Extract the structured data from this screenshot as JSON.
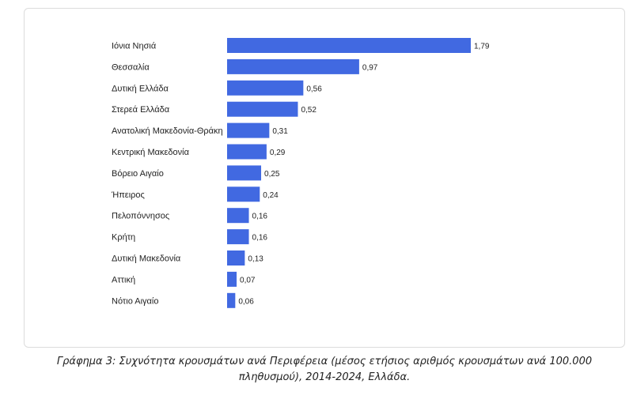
{
  "chart_data": {
    "type": "bar",
    "orientation": "horizontal",
    "categories": [
      "Ιόνια Νησιά",
      "Θεσσαλία",
      "Δυτική Ελλάδα",
      "Στερεά Ελλάδα",
      "Ανατολική Μακεδονία-Θράκη",
      "Κεντρική Μακεδονία",
      "Βόρειο Αιγαίο",
      "Ήπειρος",
      "Πελοπόννησος",
      "Κρήτη",
      "Δυτική Μακεδονία",
      "Αττική",
      "Νότιο Αιγαίο"
    ],
    "values": [
      1.79,
      0.97,
      0.56,
      0.52,
      0.31,
      0.29,
      0.25,
      0.24,
      0.16,
      0.16,
      0.13,
      0.07,
      0.06
    ],
    "value_labels": [
      "1,79",
      "0,97",
      "0,56",
      "0,52",
      "0,31",
      "0,29",
      "0,25",
      "0,24",
      "0,16",
      "0,16",
      "0,13",
      "0,07",
      "0,06"
    ],
    "bar_color": "#4169e1",
    "grid": false,
    "legend": "none"
  },
  "caption": "Γράφημα 3: Συχνότητα κρουσμάτων ανά Περιφέρεια (μέσος ετήσιος αριθμός κρουσμάτων ανά 100.000 πληθυσμού), 2014-2024, Ελλάδα."
}
